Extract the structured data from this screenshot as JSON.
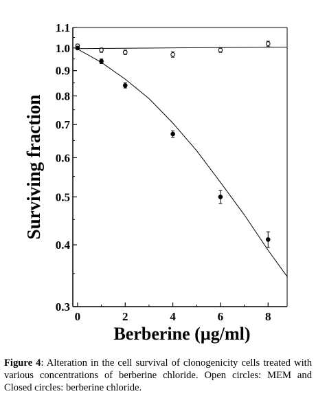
{
  "chart_data": {
    "type": "scatter",
    "title": "",
    "xlabel": "Berberine (µg/ml)",
    "ylabel": "Surviving fraction",
    "xlim": [
      -0.2,
      8.8
    ],
    "ylim": [
      0.3,
      1.1
    ],
    "yscale": "log",
    "x_ticks": [
      0,
      2,
      4,
      6,
      8
    ],
    "x_tick_labels": [
      "0",
      "2",
      "4",
      "6",
      "8"
    ],
    "y_ticks": [
      0.3,
      0.4,
      0.5,
      0.6,
      0.7,
      0.8,
      0.9,
      1.0,
      1.1
    ],
    "y_tick_labels": [
      "0.3",
      "0.4",
      "0.5",
      "0.6",
      "0.7",
      "0.8",
      "0.9",
      "1.0",
      "1.1"
    ],
    "grid": false,
    "legend": "none",
    "series": [
      {
        "marker": "open-circle",
        "x": [
          0,
          1,
          2,
          4,
          6,
          8
        ],
        "y": [
          1.01,
          0.99,
          0.98,
          0.97,
          0.99,
          1.02
        ],
        "err": [
          0.008,
          0.01,
          0.01,
          0.012,
          0.01,
          0.012
        ],
        "fit": {
          "x": [
            0,
            8.8
          ],
          "y": [
            0.997,
            1.004
          ]
        }
      },
      {
        "marker": "filled-circle",
        "x": [
          0,
          1,
          2,
          4,
          6,
          8
        ],
        "y": [
          1.0,
          0.94,
          0.84,
          0.67,
          0.5,
          0.41
        ],
        "err": [
          0.008,
          0.01,
          0.01,
          0.01,
          0.015,
          0.015
        ],
        "fit": {
          "x": [
            0,
            1,
            2,
            3,
            4,
            5,
            6,
            7,
            8,
            8.8
          ],
          "y": [
            0.995,
            0.935,
            0.865,
            0.79,
            0.705,
            0.62,
            0.535,
            0.46,
            0.39,
            0.345
          ]
        }
      }
    ]
  },
  "caption": {
    "label": "Figure 4",
    "text": ": Alteration in the cell survival of clonogenicity cells treated with various concentrations of berberine chloride. Open circles: MEM and Closed circles: berberine chloride."
  }
}
